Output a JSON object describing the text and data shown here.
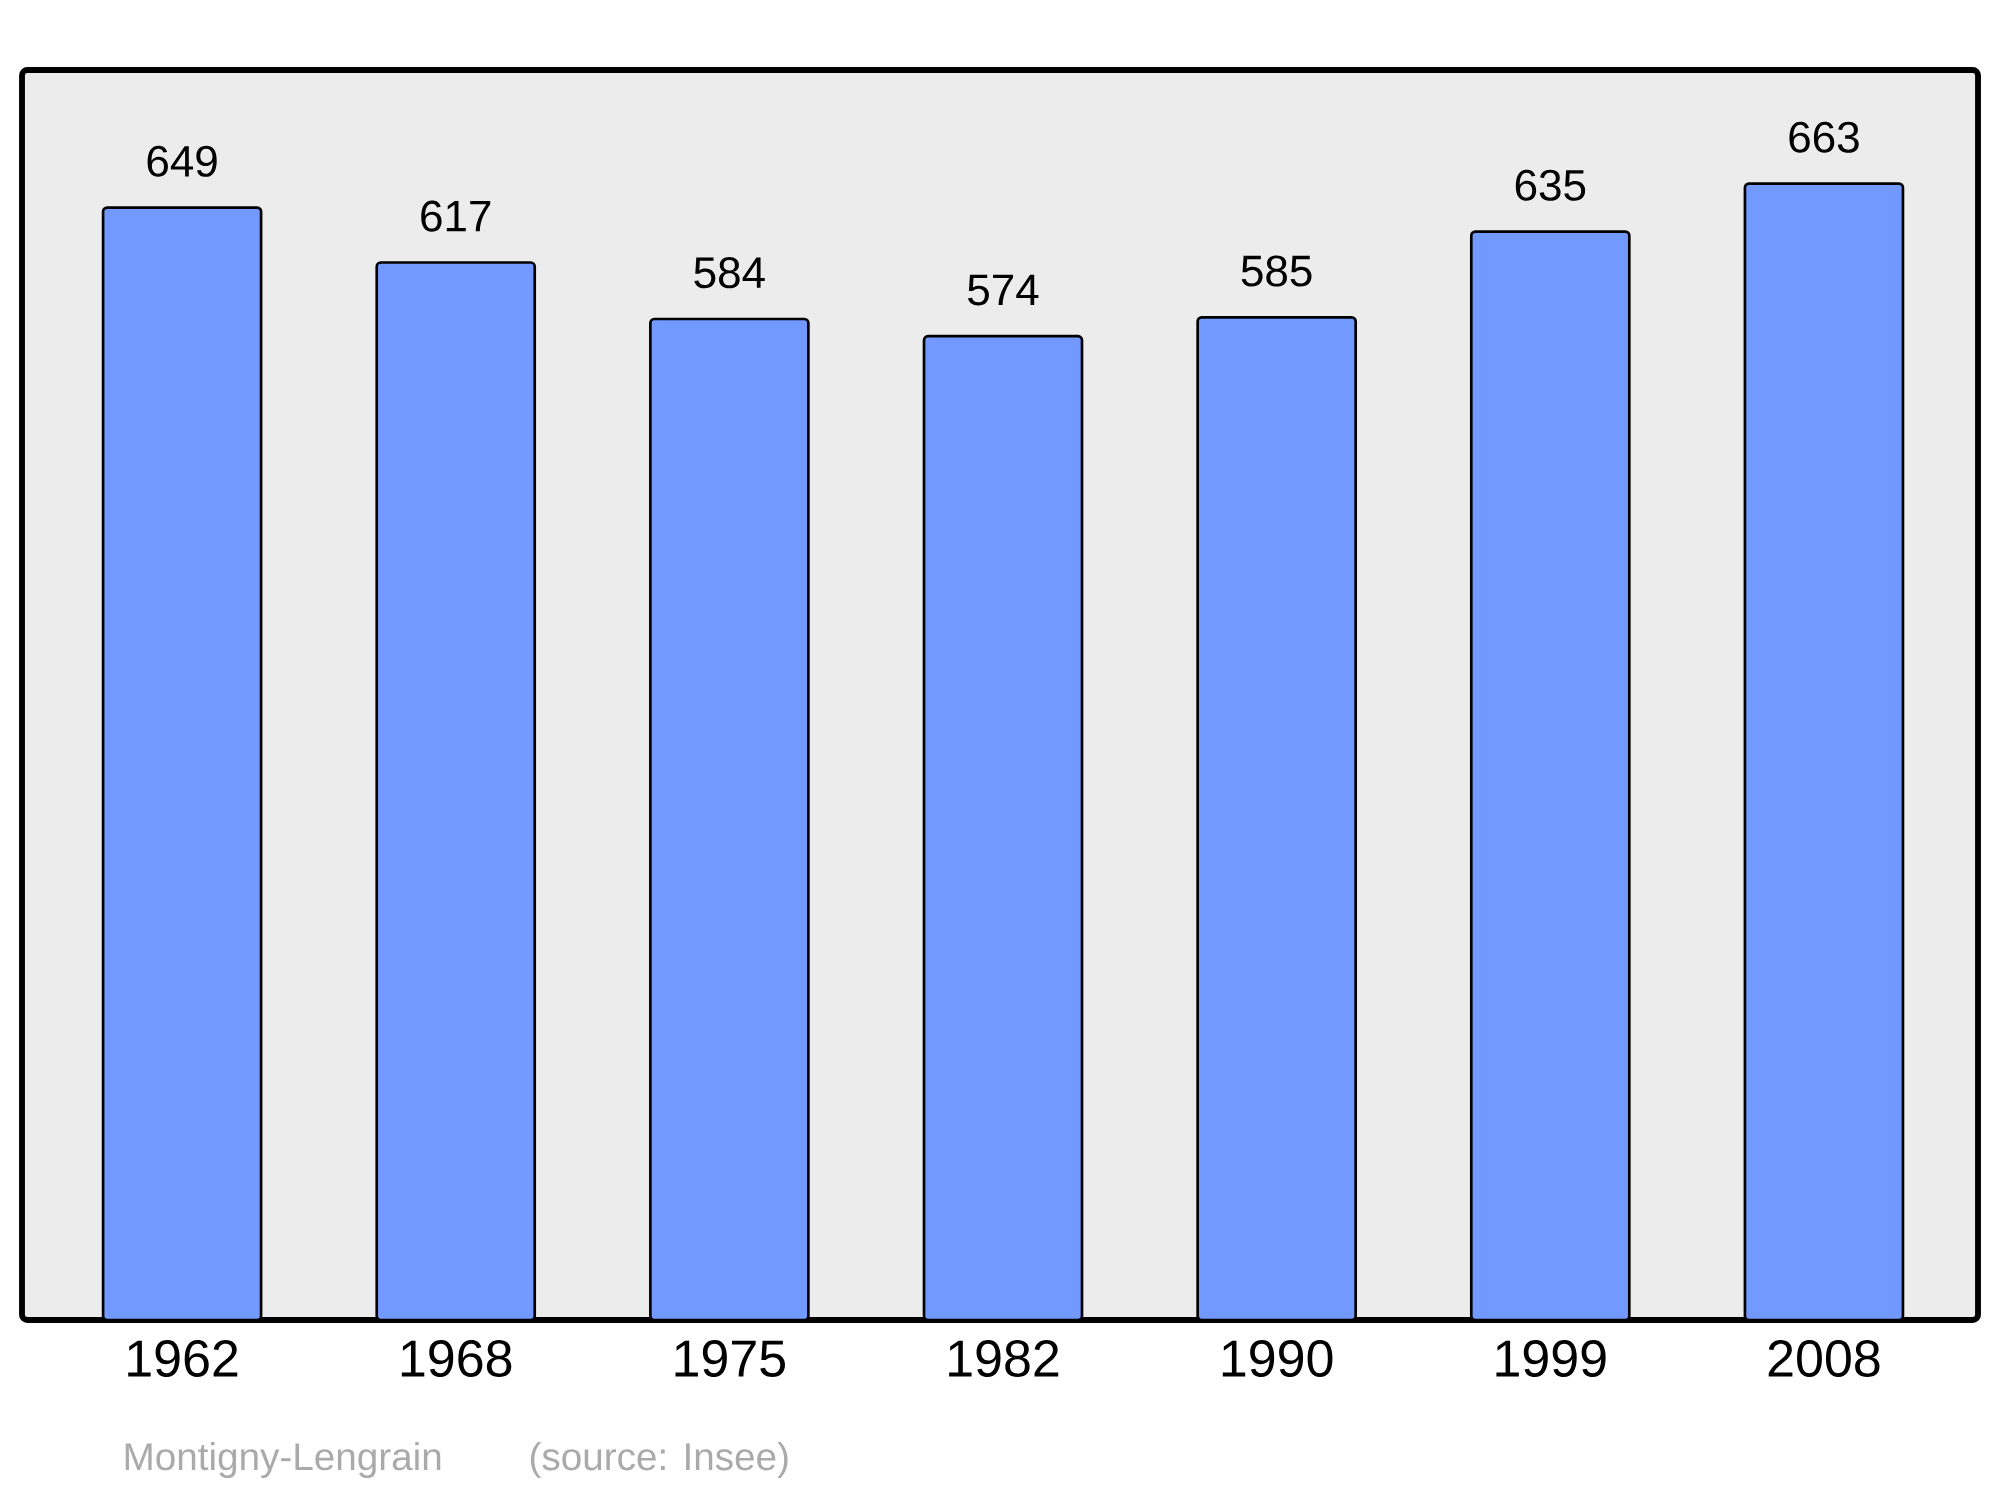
{
  "chart_data": {
    "type": "bar",
    "categories": [
      "1962",
      "1968",
      "1975",
      "1982",
      "1990",
      "1999",
      "2008"
    ],
    "values": [
      649,
      617,
      584,
      574,
      585,
      635,
      663
    ],
    "color": "#7299ff",
    "data_labels": true,
    "annotations": [
      "Montigny-Lengrain",
      "(source: Insee)"
    ]
  }
}
